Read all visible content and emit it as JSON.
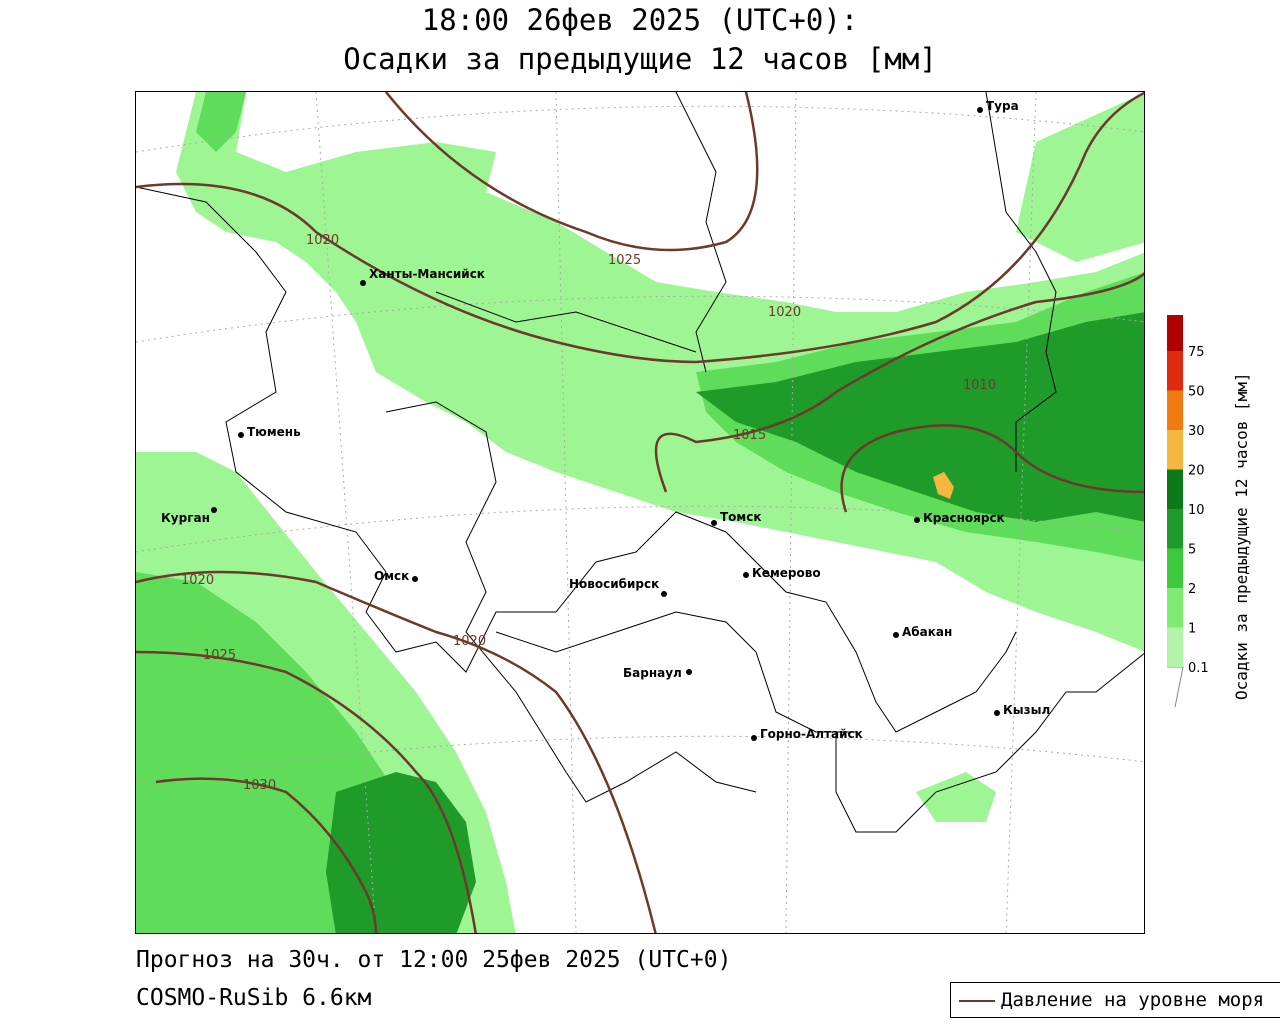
{
  "header": {
    "title_line1": "18:00 26фев 2025 (UTC+0):",
    "title_line2": "Осадки за предыдущие 12 часов [мм]"
  },
  "footer": {
    "forecast": "Прогноз на 30ч. от 12:00 25фев 2025 (UTC+0)",
    "model": "COSMO-RuSib 6.6км"
  },
  "legend": {
    "isobar_label": "Давление на уровне моря",
    "isobar_color": "#6b3a2a"
  },
  "colorbar": {
    "title": "Осадки за предыдущие 12 часов [мм]",
    "levels": [
      "0.1",
      "1",
      "2",
      "5",
      "10",
      "20",
      "30",
      "50",
      "75"
    ],
    "colors": [
      "#b3f5a8",
      "#7feb73",
      "#3dc93b",
      "#1f9b2a",
      "#0d7a18",
      "#f5b642",
      "#f07b10",
      "#e02a10",
      "#b00000",
      "#a0a0a0"
    ]
  },
  "cities": [
    {
      "name": "Тура"
    },
    {
      "name": "Ханты-Мансийск"
    },
    {
      "name": "Тюмень"
    },
    {
      "name": "Курган"
    },
    {
      "name": "Омск"
    },
    {
      "name": "Новосибирск"
    },
    {
      "name": "Томск"
    },
    {
      "name": "Кемерово"
    },
    {
      "name": "Красноярск"
    },
    {
      "name": "Абакан"
    },
    {
      "name": "Барнаул"
    },
    {
      "name": "Горно-Алтайск"
    },
    {
      "name": "Кызыл"
    }
  ],
  "isobars": [
    "1020",
    "1025",
    "1020",
    "1010",
    "1015",
    "1020",
    "1025",
    "1020",
    "1030"
  ]
}
